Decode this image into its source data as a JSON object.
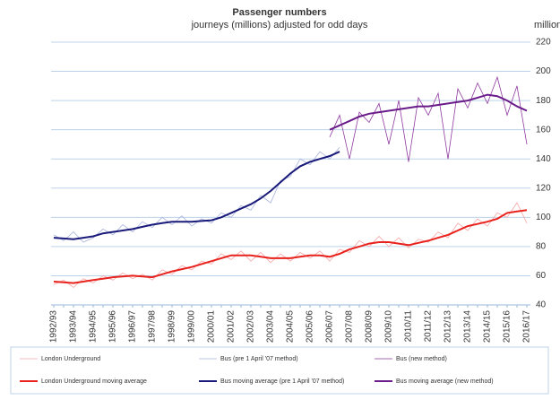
{
  "chart_data": {
    "type": "line",
    "title": "Passenger numbers",
    "subtitle": "journeys (millions) adjusted for odd days",
    "y_label": "millions",
    "categories": [
      "1992/93",
      null,
      "1993/94",
      null,
      "1994/95",
      null,
      "1995/96",
      null,
      "1996/97",
      null,
      "1997/98",
      null,
      "1998/99",
      null,
      "1999/00",
      null,
      "2000/01",
      null,
      "2001/02",
      null,
      "2002/03",
      null,
      "2003/04",
      null,
      "2004/05",
      null,
      "2005/06",
      null,
      "2006/07",
      null,
      "2007/08",
      null,
      "2008/09",
      null,
      "2009/10",
      null,
      "2010/11",
      null,
      "2011/12",
      null,
      "2012/13",
      null,
      "2013/14",
      null,
      "2014/15",
      null,
      "2015/16",
      null,
      "2016/17"
    ],
    "ylim": [
      40,
      220
    ],
    "yticks": [
      40,
      60,
      80,
      100,
      120,
      140,
      160,
      180,
      200,
      220
    ],
    "grid": true,
    "legend": "bottom",
    "series": [
      {
        "name": "London Underground",
        "color": "#f4a6a6",
        "width": 0.8,
        "values": [
          54,
          57,
          52,
          58,
          55,
          60,
          57,
          62,
          58,
          61,
          57,
          64,
          61,
          67,
          64,
          70,
          68,
          75,
          71,
          77,
          70,
          76,
          69,
          75,
          70,
          76,
          72,
          77,
          70,
          78,
          76,
          84,
          80,
          87,
          80,
          86,
          79,
          85,
          83,
          90,
          86,
          96,
          91,
          99,
          94,
          103,
          100,
          110,
          96
        ]
      },
      {
        "name": "Bus (pre 1 April '07 method)",
        "color": "#a9b4dc",
        "width": 0.8,
        "values": [
          88,
          84,
          90,
          83,
          86,
          92,
          88,
          95,
          90,
          97,
          93,
          100,
          95,
          101,
          94,
          99,
          96,
          103,
          100,
          108,
          105,
          115,
          110,
          125,
          128,
          140,
          136,
          145,
          140,
          148,
          null,
          null,
          null,
          null,
          null,
          null,
          null,
          null,
          null,
          null,
          null,
          null,
          null,
          null,
          null,
          null,
          null,
          null,
          null
        ]
      },
      {
        "name": "Bus (new method)",
        "color": "#8e3a9e",
        "width": 0.8,
        "values": [
          null,
          null,
          null,
          null,
          null,
          null,
          null,
          null,
          null,
          null,
          null,
          null,
          null,
          null,
          null,
          null,
          null,
          null,
          null,
          null,
          null,
          null,
          null,
          null,
          null,
          null,
          null,
          null,
          155,
          170,
          140,
          172,
          165,
          178,
          150,
          180,
          138,
          182,
          170,
          185,
          140,
          188,
          175,
          192,
          178,
          196,
          170,
          190,
          150
        ]
      },
      {
        "name": "London Underground moving average",
        "color": "#e8221c",
        "width": 2,
        "values": [
          56,
          55.5,
          55,
          56,
          57,
          58,
          59,
          59.5,
          60,
          59.5,
          59,
          61,
          63,
          64.5,
          66,
          68,
          70,
          72,
          74,
          74,
          74,
          73,
          72,
          72,
          72,
          73,
          74,
          74,
          73,
          75,
          78,
          80,
          82,
          83,
          83,
          82,
          81,
          82.5,
          84,
          86,
          88,
          91,
          94,
          95.5,
          97,
          99,
          103,
          104,
          105
        ]
      },
      {
        "name": "Bus moving average (pre 1 April '07 method)",
        "color": "#1a1a7a",
        "width": 2,
        "values": [
          86,
          85.5,
          85,
          86,
          87,
          89,
          90,
          91,
          92,
          93.5,
          95,
          96,
          97,
          97,
          97,
          97.5,
          98,
          100,
          103,
          106,
          109,
          113,
          118,
          124,
          130,
          135,
          138,
          140,
          142,
          145,
          null,
          null,
          null,
          null,
          null,
          null,
          null,
          null,
          null,
          null,
          null,
          null,
          null,
          null,
          null,
          null,
          null,
          null,
          null
        ]
      },
      {
        "name": "Bus moving average (new method)",
        "color": "#6a1b8a",
        "width": 2,
        "values": [
          null,
          null,
          null,
          null,
          null,
          null,
          null,
          null,
          null,
          null,
          null,
          null,
          null,
          null,
          null,
          null,
          null,
          null,
          null,
          null,
          null,
          null,
          null,
          null,
          null,
          null,
          null,
          null,
          160,
          163,
          166,
          169,
          171,
          172,
          173,
          174,
          175,
          176,
          176,
          177,
          178,
          179,
          180,
          182,
          184,
          183,
          180,
          176,
          173
        ]
      }
    ]
  }
}
